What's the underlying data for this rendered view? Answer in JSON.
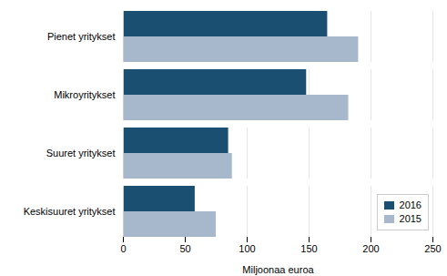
{
  "chart_data": {
    "type": "bar",
    "orientation": "horizontal",
    "categories": [
      "Keskisuuret yritykset",
      "Suuret yritykset",
      "Mikroyritykset",
      "Pienet yritykset"
    ],
    "series": [
      {
        "name": "2016",
        "color": "#1a4f72",
        "values": [
          58,
          85,
          148,
          165
        ]
      },
      {
        "name": "2015",
        "color": "#a8b8cc",
        "values": [
          75,
          88,
          182,
          190
        ]
      }
    ],
    "xlabel": "Miljoonaa euroa",
    "xlim": [
      0,
      250
    ],
    "xticks": [
      0,
      50,
      100,
      150,
      200,
      250
    ],
    "grid": true,
    "legend": "lower right"
  }
}
